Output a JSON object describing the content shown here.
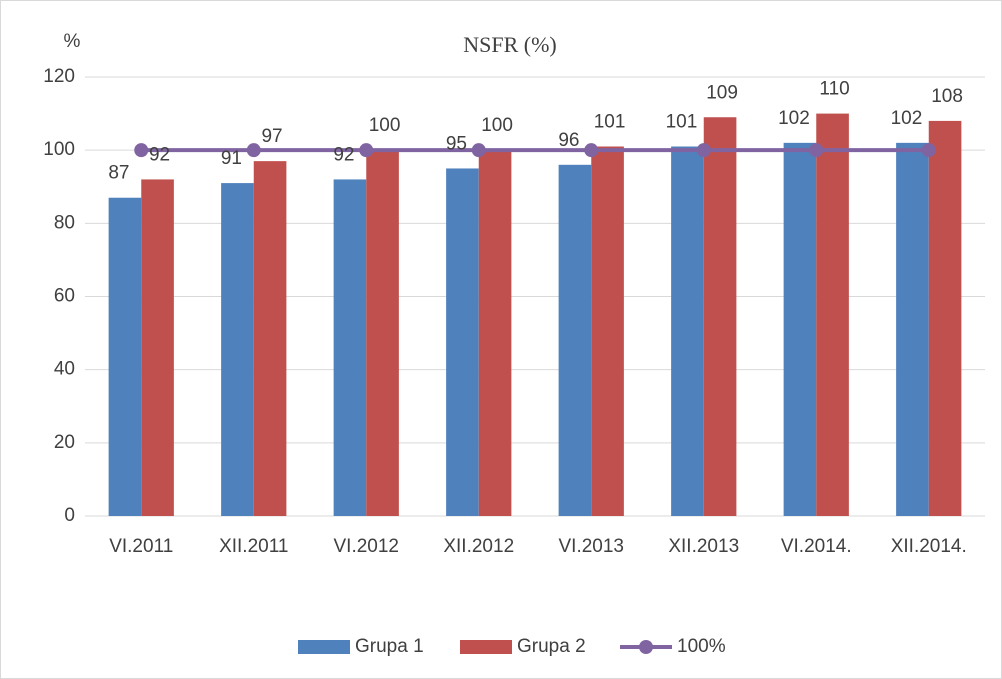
{
  "chart_data": {
    "type": "bar",
    "title": "NSFR (%)",
    "ylabel": "%",
    "categories": [
      "VI.2011",
      "XII.2011",
      "VI.2012",
      "XII.2012",
      "VI.2013",
      "XII.2013",
      "VI.2014.",
      "XII.2014."
    ],
    "series": [
      {
        "name": "Grupa 1",
        "color": "#4f81bd",
        "values": [
          87,
          91,
          92,
          95,
          96,
          101,
          102,
          102
        ]
      },
      {
        "name": "Grupa 2",
        "color": "#c0504d",
        "values": [
          92,
          97,
          100,
          100,
          101,
          109,
          110,
          108
        ]
      },
      {
        "name": "100%",
        "type": "line",
        "color": "#8064a2",
        "values": [
          100,
          100,
          100,
          100,
          100,
          100,
          100,
          100
        ]
      }
    ],
    "ylim": [
      0,
      120
    ],
    "yticks": [
      0,
      20,
      40,
      60,
      80,
      100,
      120
    ],
    "grid": true,
    "legend": "bottom"
  }
}
